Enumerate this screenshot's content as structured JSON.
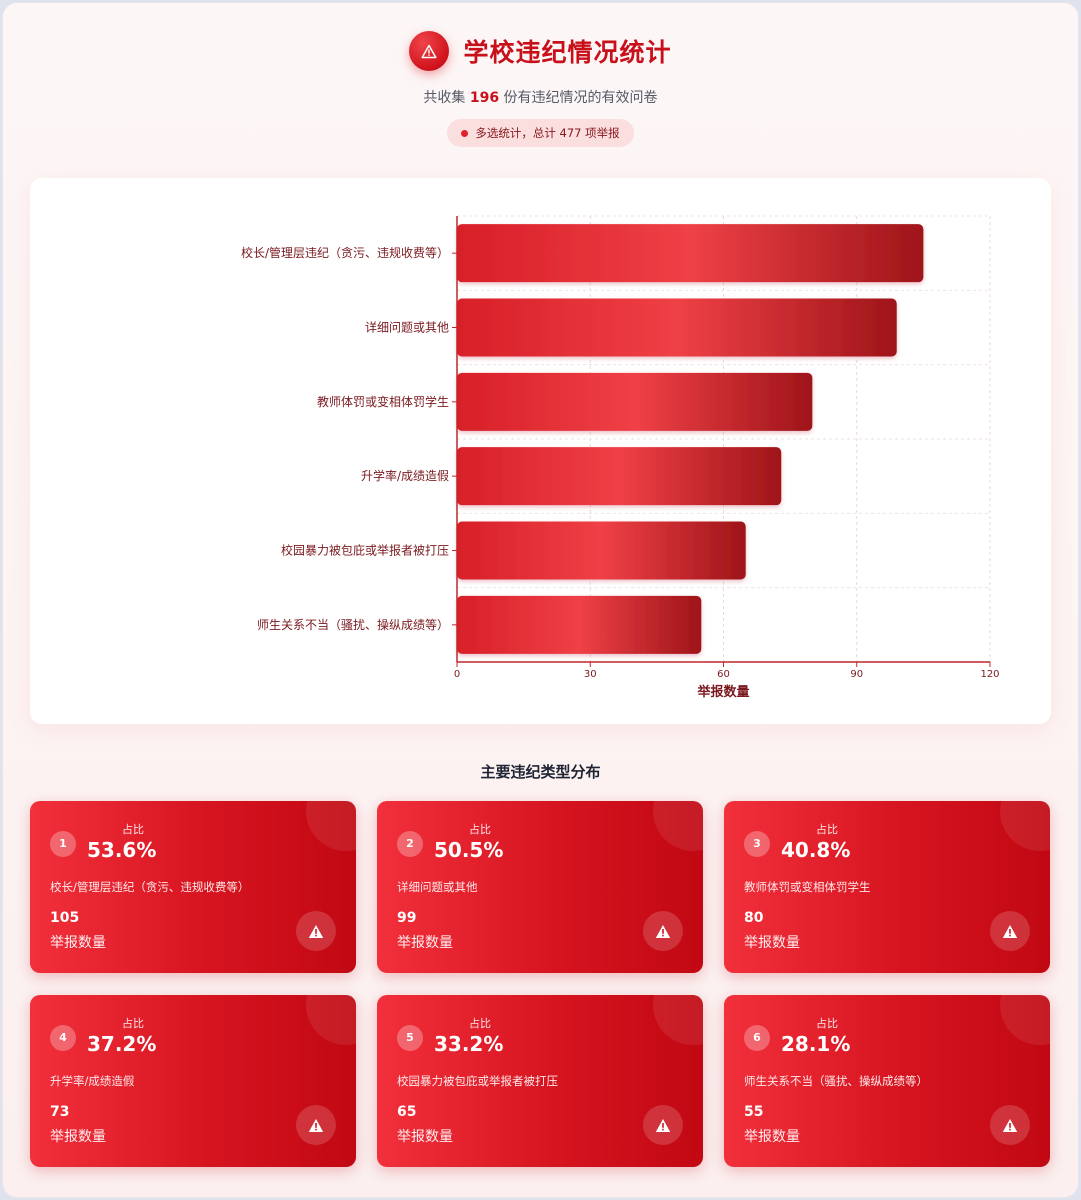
{
  "header": {
    "title": "学校违纪情况统计",
    "subtitle_pre": "共收集 ",
    "subtitle_num": "196",
    "subtitle_post": " 份有违纪情况的有效问卷",
    "pill": "多选统计，总计 477 项举报",
    "icon": "warning-triangle-icon"
  },
  "chart_data": {
    "type": "bar",
    "orientation": "horizontal",
    "categories": [
      "校长/管理层违纪（贪污、违规收费等）",
      "详细问题或其他",
      "教师体罚或变相体罚学生",
      "升学率/成绩造假",
      "校园暴力被包庇或举报者被打压",
      "师生关系不当（骚扰、操纵成绩等）"
    ],
    "values": [
      105,
      99,
      80,
      73,
      65,
      55
    ],
    "xlabel": "举报数量",
    "xlim": [
      0,
      120
    ],
    "xticks": [
      0,
      30,
      60,
      90,
      120
    ],
    "grid": true,
    "bar_color": "#e53038"
  },
  "section": {
    "title": "主要违纪类型分布"
  },
  "cards": [
    {
      "rank": "1",
      "pct_label": "占比",
      "pct": "53.6%",
      "category": "校长/管理层违纪（贪污、违规收费等）",
      "count": "105",
      "count_label": "举报数量"
    },
    {
      "rank": "2",
      "pct_label": "占比",
      "pct": "50.5%",
      "category": "详细问题或其他",
      "count": "99",
      "count_label": "举报数量"
    },
    {
      "rank": "3",
      "pct_label": "占比",
      "pct": "40.8%",
      "category": "教师体罚或变相体罚学生",
      "count": "80",
      "count_label": "举报数量"
    },
    {
      "rank": "4",
      "pct_label": "占比",
      "pct": "37.2%",
      "category": "升学率/成绩造假",
      "count": "73",
      "count_label": "举报数量"
    },
    {
      "rank": "5",
      "pct_label": "占比",
      "pct": "33.2%",
      "category": "校园暴力被包庇或举报者被打压",
      "count": "65",
      "count_label": "举报数量"
    },
    {
      "rank": "6",
      "pct_label": "占比",
      "pct": "28.1%",
      "category": "师生关系不当（骚扰、操纵成绩等）",
      "count": "55",
      "count_label": "举报数量"
    }
  ]
}
